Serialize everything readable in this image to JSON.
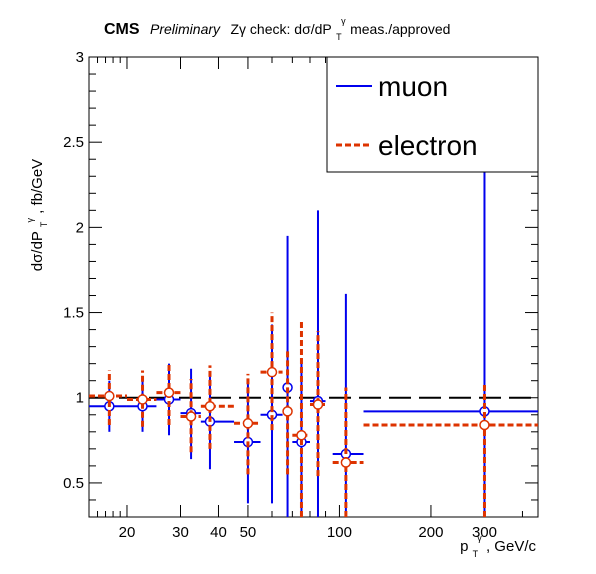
{
  "chart_data": {
    "type": "scatter",
    "title_brand": "CMS",
    "title_prefix": "Preliminary",
    "title": "Zγ check: dσ/dP",
    "title_sub": "T",
    "title_sup": "γ",
    "title_suffix": " meas./approved",
    "ylabel_main": "dσ/dP",
    "ylabel_sub": "T",
    "ylabel_sup": "γ",
    "ylabel_suffix": ", fb/GeV",
    "xlabel_main": "p",
    "xlabel_sub": "T",
    "xlabel_sup": "γ",
    "xlabel_suffix": ", GeV/c",
    "xscale": "log",
    "xlim": [
      15,
      450
    ],
    "ylim": [
      0.3,
      3.0
    ],
    "x_ticks": [
      {
        "value": 20,
        "label": "20"
      },
      {
        "value": 30,
        "label": "30"
      },
      {
        "value": 40,
        "label": "40"
      },
      {
        "value": 50,
        "label": "50"
      },
      {
        "value": 100,
        "label": "100"
      },
      {
        "value": 200,
        "label": "200"
      },
      {
        "value": 300,
        "label": "300"
      }
    ],
    "y_ticks": [
      {
        "value": 0.5,
        "label": "0.5"
      },
      {
        "value": 1,
        "label": "1"
      },
      {
        "value": 1.5,
        "label": "1.5"
      },
      {
        "value": 2,
        "label": "2"
      },
      {
        "value": 2.5,
        "label": "2.5"
      },
      {
        "value": 3,
        "label": "3"
      }
    ],
    "reference_line": 1.0,
    "legend_position": "top-right",
    "series": [
      {
        "name": "muon",
        "color": "#0000ee",
        "points": [
          {
            "x": 17.5,
            "xlo": 15,
            "xhi": 20,
            "y": 0.95,
            "ylo": 0.8,
            "yhi": 1.1
          },
          {
            "x": 22.5,
            "xlo": 20,
            "xhi": 25,
            "y": 0.95,
            "ylo": 0.8,
            "yhi": 1.11
          },
          {
            "x": 27.5,
            "xlo": 25,
            "xhi": 30,
            "y": 0.99,
            "ylo": 0.78,
            "yhi": 1.2
          },
          {
            "x": 32.5,
            "xlo": 30,
            "xhi": 35,
            "y": 0.91,
            "ylo": 0.64,
            "yhi": 1.17
          },
          {
            "x": 37.5,
            "xlo": 35,
            "xhi": 45,
            "y": 0.86,
            "ylo": 0.58,
            "yhi": 1.14
          },
          {
            "x": 50.0,
            "xlo": 45,
            "xhi": 55,
            "y": 0.74,
            "ylo": 0.38,
            "yhi": 1.1
          },
          {
            "x": 60.0,
            "xlo": 55,
            "xhi": 65,
            "y": 0.9,
            "ylo": 0.38,
            "yhi": 1.43
          },
          {
            "x": 67.5,
            "xlo": 65,
            "xhi": 70,
            "y": 1.06,
            "ylo": 0.3,
            "yhi": 1.95
          },
          {
            "x": 75.0,
            "xlo": 70,
            "xhi": 80,
            "y": 0.74,
            "ylo": 0.3,
            "yhi": 1.2
          },
          {
            "x": 85.0,
            "xlo": 80,
            "xhi": 90,
            "y": 0.98,
            "ylo": 0.3,
            "yhi": 2.1
          },
          {
            "x": 105.0,
            "xlo": 95,
            "xhi": 120,
            "y": 0.67,
            "ylo": 0.3,
            "yhi": 1.61
          },
          {
            "x": 300.0,
            "xlo": 120,
            "xhi": 450,
            "y": 0.92,
            "ylo": 0.3,
            "yhi": 3.0
          }
        ]
      },
      {
        "name": "electron",
        "color": "#dd3300",
        "points": [
          {
            "x": 17.5,
            "xlo": 15,
            "xhi": 20,
            "y": 1.01,
            "ylo": 0.84,
            "yhi": 1.16
          },
          {
            "x": 22.5,
            "xlo": 20,
            "xhi": 25,
            "y": 0.99,
            "ylo": 0.83,
            "yhi": 1.16
          },
          {
            "x": 27.5,
            "xlo": 25,
            "xhi": 30,
            "y": 1.03,
            "ylo": 0.84,
            "yhi": 1.21
          },
          {
            "x": 32.5,
            "xlo": 30,
            "xhi": 35,
            "y": 0.89,
            "ylo": 0.68,
            "yhi": 1.11
          },
          {
            "x": 37.5,
            "xlo": 35,
            "xhi": 45,
            "y": 0.95,
            "ylo": 0.7,
            "yhi": 1.19
          },
          {
            "x": 50.0,
            "xlo": 45,
            "xhi": 55,
            "y": 0.85,
            "ylo": 0.55,
            "yhi": 1.14
          },
          {
            "x": 60.0,
            "xlo": 55,
            "xhi": 65,
            "y": 1.15,
            "ylo": 0.81,
            "yhi": 1.5
          },
          {
            "x": 67.5,
            "xlo": 65,
            "xhi": 70,
            "y": 0.92,
            "ylo": 0.55,
            "yhi": 1.28
          },
          {
            "x": 75.0,
            "xlo": 70,
            "xhi": 80,
            "y": 0.78,
            "ylo": 0.3,
            "yhi": 1.46
          },
          {
            "x": 85.0,
            "xlo": 80,
            "xhi": 90,
            "y": 0.96,
            "ylo": 0.54,
            "yhi": 1.39
          },
          {
            "x": 105.0,
            "xlo": 95,
            "xhi": 120,
            "y": 0.62,
            "ylo": 0.3,
            "yhi": 1.06
          },
          {
            "x": 300.0,
            "xlo": 120,
            "xhi": 450,
            "y": 0.84,
            "ylo": 0.3,
            "yhi": 1.08
          }
        ]
      }
    ]
  }
}
